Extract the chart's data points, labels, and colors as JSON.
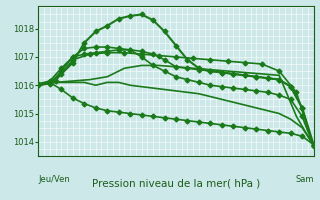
{
  "background_color": "#cce8e8",
  "grid_color": "#ffffff",
  "line_color": "#1a7a1a",
  "title": "Pression niveau de la mer( hPa )",
  "xlabel_left": "Jeu/Ven",
  "xlabel_right": "Sam",
  "ylim": [
    1013.5,
    1018.8
  ],
  "yticks": [
    1014,
    1015,
    1016,
    1017,
    1018
  ],
  "xmin": 0,
  "xmax": 48,
  "series": [
    {
      "x": [
        0,
        2,
        4,
        6,
        8,
        10,
        12,
        14,
        16,
        18,
        20,
        22,
        24,
        26,
        28,
        30,
        32,
        34,
        36,
        38,
        40,
        42,
        44,
        46,
        48
      ],
      "y": [
        1016.0,
        1016.1,
        1016.1,
        1016.1,
        1016.1,
        1016.0,
        1016.1,
        1016.1,
        1016.0,
        1015.95,
        1015.9,
        1015.85,
        1015.8,
        1015.75,
        1015.7,
        1015.6,
        1015.5,
        1015.4,
        1015.3,
        1015.2,
        1015.1,
        1015.0,
        1014.8,
        1014.5,
        1013.9
      ],
      "marker": null,
      "lw": 1.2
    },
    {
      "x": [
        0,
        3,
        6,
        9,
        12,
        15,
        18,
        21,
        24,
        27,
        30,
        33,
        36,
        39,
        42,
        45,
        48
      ],
      "y": [
        1016.0,
        1016.1,
        1016.15,
        1016.2,
        1016.3,
        1016.6,
        1016.7,
        1016.7,
        1016.65,
        1016.6,
        1016.55,
        1016.5,
        1016.45,
        1016.4,
        1016.35,
        1014.9,
        1013.85
      ],
      "marker": null,
      "lw": 1.2
    },
    {
      "x": [
        0,
        2,
        4,
        6,
        8,
        10,
        12,
        14,
        16,
        18,
        20,
        22,
        24,
        26,
        28,
        30,
        32,
        34,
        36,
        38,
        40,
        42,
        44,
        46,
        48
      ],
      "y": [
        1016.05,
        1016.15,
        1016.6,
        1017.0,
        1017.1,
        1017.15,
        1017.2,
        1017.25,
        1017.25,
        1017.2,
        1017.1,
        1016.9,
        1016.65,
        1016.6,
        1016.55,
        1016.5,
        1016.45,
        1016.4,
        1016.35,
        1016.3,
        1016.25,
        1016.2,
        1015.95,
        1015.2,
        1013.85
      ],
      "marker": "D",
      "lw": 1.2
    },
    {
      "x": [
        0,
        2,
        4,
        6,
        8,
        10,
        12,
        14,
        16,
        18,
        20,
        22,
        24,
        26,
        28,
        30,
        32,
        34,
        36,
        38,
        40,
        42,
        44,
        46,
        48
      ],
      "y": [
        1016.0,
        1016.05,
        1016.5,
        1017.0,
        1017.3,
        1017.35,
        1017.35,
        1017.3,
        1017.25,
        1017.0,
        1016.7,
        1016.5,
        1016.3,
        1016.2,
        1016.1,
        1016.0,
        1015.95,
        1015.9,
        1015.85,
        1015.8,
        1015.75,
        1015.65,
        1015.5,
        1014.9,
        1013.85
      ],
      "marker": "D",
      "lw": 1.2
    },
    {
      "x": [
        0,
        2,
        4,
        6,
        8,
        10,
        12,
        14,
        16,
        18,
        20,
        22,
        24,
        26,
        28,
        30,
        32,
        34,
        36,
        38,
        40,
        42,
        44,
        46,
        48
      ],
      "y": [
        1016.0,
        1016.1,
        1016.4,
        1016.8,
        1017.5,
        1017.9,
        1018.1,
        1018.35,
        1018.45,
        1018.5,
        1018.3,
        1017.9,
        1017.4,
        1016.9,
        1016.6,
        1016.5,
        1016.45,
        1016.4,
        1016.35,
        1016.3,
        1016.25,
        1016.2,
        1015.95,
        1015.2,
        1013.9
      ],
      "marker": "D",
      "lw": 1.5
    },
    {
      "x": [
        0,
        3,
        6,
        9,
        12,
        15,
        18,
        21,
        24,
        27,
        30,
        33,
        36,
        39,
        42,
        45,
        48
      ],
      "y": [
        1016.0,
        1016.15,
        1016.9,
        1017.1,
        1017.15,
        1017.15,
        1017.1,
        1017.05,
        1017.0,
        1016.95,
        1016.9,
        1016.85,
        1016.8,
        1016.75,
        1016.5,
        1015.75,
        1013.85
      ],
      "marker": "D",
      "lw": 1.2
    },
    {
      "x": [
        0,
        2,
        4,
        6,
        8,
        10,
        12,
        14,
        16,
        18,
        20,
        22,
        24,
        26,
        28,
        30,
        32,
        34,
        36,
        38,
        40,
        42,
        44,
        46,
        48
      ],
      "y": [
        1016.05,
        1016.1,
        1015.85,
        1015.55,
        1015.35,
        1015.2,
        1015.1,
        1015.05,
        1015.0,
        1014.95,
        1014.9,
        1014.85,
        1014.8,
        1014.75,
        1014.7,
        1014.65,
        1014.6,
        1014.55,
        1014.5,
        1014.45,
        1014.4,
        1014.35,
        1014.3,
        1014.2,
        1013.9
      ],
      "marker": "D",
      "lw": 1.2
    }
  ]
}
